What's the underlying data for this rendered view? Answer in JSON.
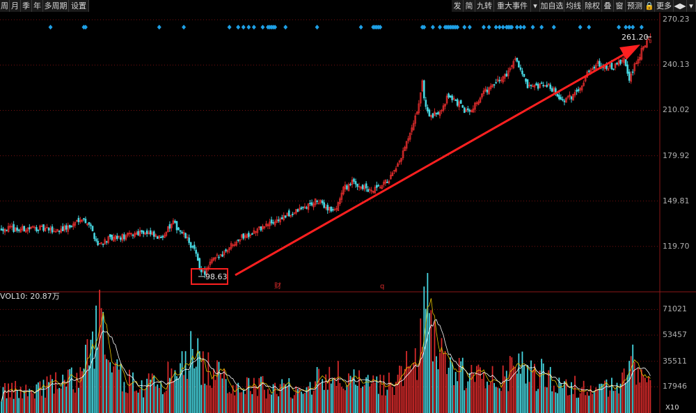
{
  "toolbar": {
    "left_items": [
      "周",
      "月",
      "季",
      "年",
      "多周期",
      "设置"
    ],
    "right_items": [
      "发",
      "简",
      "九转",
      "重大事件",
      "▾",
      "加自选",
      "均线",
      "除权",
      "叠",
      "窗",
      "预测",
      "🔒",
      "更多",
      "◀▶",
      "▾"
    ]
  },
  "annotations": {
    "low_label": "98.63",
    "high_label": "261.20",
    "marker_cai": "财",
    "marker_q": "q"
  },
  "colors": {
    "up": "#d62a2a",
    "down": "#46d6e0",
    "diamond": "#1ea0e6",
    "grid": "#7a1010",
    "arrow": "#ff2020",
    "ma5": "#ffffff",
    "ma10": "#e6c200"
  },
  "volume": {
    "title": "VOL10: 20.87万",
    "multiplier": "X10"
  },
  "chart_data": {
    "type": "candlestick",
    "price_axis": {
      "ticks": [
        119.7,
        149.81,
        179.92,
        210.02,
        240.13,
        270.23
      ],
      "labels": [
        "119.70",
        "149.81",
        "179.92",
        "210.02",
        "240.13",
        "270.23"
      ],
      "range": [
        90,
        275
      ]
    },
    "volume_axis": {
      "ticks": [
        17946,
        35511,
        53457,
        71021
      ],
      "labels": [
        "17946",
        "35511",
        "53457",
        "71021"
      ],
      "range": [
        0,
        76000
      ]
    },
    "low_point": 98.63,
    "high_point": 261.2,
    "trend_arrow": {
      "from": 104,
      "to": 260
    },
    "close_anchors": [
      [
        0,
        132
      ],
      [
        10,
        131
      ],
      [
        20,
        132
      ],
      [
        30,
        130
      ],
      [
        40,
        133
      ],
      [
        45,
        139
      ],
      [
        50,
        135
      ],
      [
        55,
        121
      ],
      [
        60,
        124
      ],
      [
        70,
        126
      ],
      [
        80,
        130
      ],
      [
        90,
        125
      ],
      [
        98,
        135
      ],
      [
        105,
        126
      ],
      [
        110,
        117
      ],
      [
        113,
        106
      ],
      [
        116,
        101
      ],
      [
        120,
        110
      ],
      [
        125,
        114
      ],
      [
        135,
        125
      ],
      [
        145,
        130
      ],
      [
        155,
        136
      ],
      [
        165,
        141
      ],
      [
        175,
        147
      ],
      [
        180,
        150
      ],
      [
        185,
        146
      ],
      [
        190,
        143
      ],
      [
        195,
        158
      ],
      [
        200,
        162
      ],
      [
        205,
        160
      ],
      [
        210,
        156
      ],
      [
        215,
        158
      ],
      [
        220,
        163
      ],
      [
        225,
        170
      ],
      [
        230,
        185
      ],
      [
        235,
        200
      ],
      [
        238,
        215
      ],
      [
        240,
        228
      ],
      [
        242,
        212
      ],
      [
        245,
        205
      ],
      [
        250,
        210
      ],
      [
        255,
        220
      ],
      [
        260,
        215
      ],
      [
        265,
        209
      ],
      [
        270,
        214
      ],
      [
        275,
        222
      ],
      [
        280,
        226
      ],
      [
        285,
        231
      ],
      [
        290,
        237
      ],
      [
        293,
        246
      ],
      [
        296,
        237
      ],
      [
        300,
        225
      ],
      [
        305,
        225
      ],
      [
        310,
        227
      ],
      [
        315,
        224
      ],
      [
        320,
        216
      ],
      [
        325,
        219
      ],
      [
        330,
        226
      ],
      [
        335,
        236
      ],
      [
        340,
        242
      ],
      [
        345,
        238
      ],
      [
        350,
        239
      ],
      [
        355,
        244
      ],
      [
        358,
        230
      ],
      [
        362,
        242
      ],
      [
        366,
        252
      ],
      [
        370,
        258
      ]
    ],
    "volume_anchors": [
      [
        0,
        14000
      ],
      [
        20,
        17000
      ],
      [
        45,
        24000
      ],
      [
        57,
        68000
      ],
      [
        60,
        30000
      ],
      [
        80,
        18000
      ],
      [
        100,
        27000
      ],
      [
        110,
        44000
      ],
      [
        115,
        32000
      ],
      [
        130,
        20000
      ],
      [
        160,
        17000
      ],
      [
        175,
        19000
      ],
      [
        185,
        28000
      ],
      [
        210,
        18000
      ],
      [
        225,
        22000
      ],
      [
        238,
        38000
      ],
      [
        242,
        72000
      ],
      [
        247,
        55000
      ],
      [
        255,
        30000
      ],
      [
        270,
        24000
      ],
      [
        290,
        27000
      ],
      [
        300,
        30000
      ],
      [
        320,
        20000
      ],
      [
        340,
        15000
      ],
      [
        355,
        22000
      ],
      [
        360,
        33000
      ],
      [
        370,
        20000
      ]
    ],
    "event_marker_candles": [
      28,
      47,
      48,
      90,
      104,
      130,
      135,
      138,
      141,
      144,
      149,
      152,
      153,
      154,
      155,
      156,
      162,
      180,
      205,
      212,
      213,
      214,
      215,
      216,
      240,
      241,
      246,
      250,
      253,
      254,
      255,
      256,
      257,
      258,
      259,
      260,
      264,
      267,
      275,
      278,
      282,
      284,
      286,
      288,
      289,
      290,
      291,
      294,
      296,
      298,
      303,
      308,
      315,
      330,
      335,
      352,
      356,
      358,
      360,
      365
    ]
  }
}
